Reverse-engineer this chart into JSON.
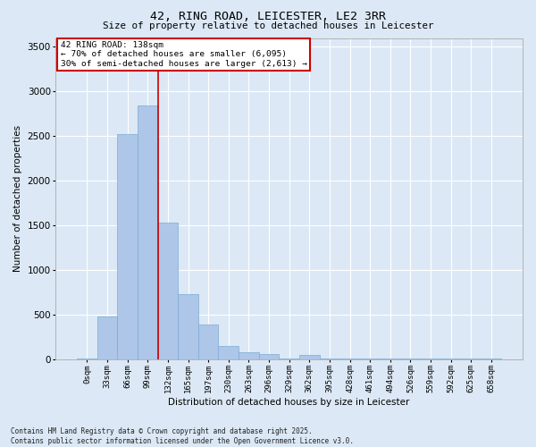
{
  "title": "42, RING ROAD, LEICESTER, LE2 3RR",
  "subtitle": "Size of property relative to detached houses in Leicester",
  "xlabel": "Distribution of detached houses by size in Leicester",
  "ylabel": "Number of detached properties",
  "bar_color": "#aec6e8",
  "bar_edge_color": "#7aadd4",
  "background_color": "#dce8f5",
  "grid_color": "#ffffff",
  "bin_labels": [
    "0sqm",
    "33sqm",
    "66sqm",
    "99sqm",
    "132sqm",
    "165sqm",
    "197sqm",
    "230sqm",
    "263sqm",
    "296sqm",
    "329sqm",
    "362sqm",
    "395sqm",
    "428sqm",
    "461sqm",
    "494sqm",
    "526sqm",
    "559sqm",
    "592sqm",
    "625sqm",
    "658sqm"
  ],
  "bar_values": [
    10,
    480,
    2520,
    2840,
    1530,
    730,
    390,
    150,
    75,
    55,
    10,
    50,
    10,
    5,
    5,
    5,
    5,
    5,
    5,
    5,
    5
  ],
  "ylim": [
    0,
    3600
  ],
  "yticks": [
    0,
    500,
    1000,
    1500,
    2000,
    2500,
    3000,
    3500
  ],
  "vline_x_bin": 4,
  "annotation_text": "42 RING ROAD: 138sqm\n← 70% of detached houses are smaller (6,095)\n30% of semi-detached houses are larger (2,613) →",
  "annotation_box_color": "#ffffff",
  "annotation_box_edge": "#cc0000",
  "vline_color": "#cc0000",
  "footnote": "Contains HM Land Registry data © Crown copyright and database right 2025.\nContains public sector information licensed under the Open Government Licence v3.0."
}
